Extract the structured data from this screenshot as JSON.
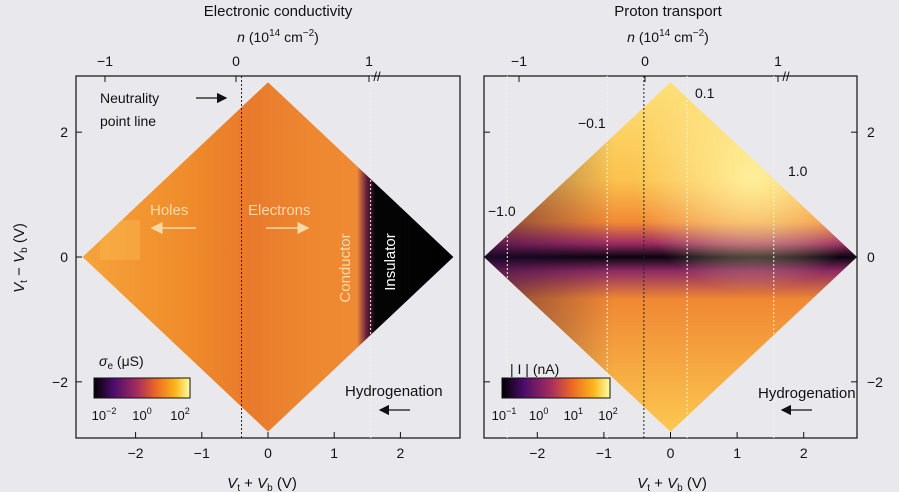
{
  "chart_data": [
    {
      "type": "heatmap",
      "title": "Electronic conductivity",
      "top_axis_label": "n (10^14 cm^-2)",
      "top_ticks": [
        "−1",
        "0",
        "1"
      ],
      "xlabel": "V_t + V_b (V)",
      "ylabel": "V_t − V_b (V)",
      "x_ticks": [
        -2,
        -1,
        0,
        1,
        2
      ],
      "y_ticks": [
        -2,
        0,
        2
      ],
      "xlim": [
        -2.9,
        2.9
      ],
      "ylim": [
        -2.9,
        2.9
      ],
      "diamond_half_extent": 2.8,
      "colorbar": {
        "label": "σe (μS)",
        "ticks": [
          "10−2",
          "100",
          "102"
        ],
        "scale": "log",
        "colors": [
          "#000000",
          "#4b0c6b",
          "#a52c60",
          "#ed6925",
          "#fbb61a",
          "#fcffa4"
        ]
      },
      "annotations": {
        "neutrality": "Neutrality point line",
        "holes": "Holes",
        "electrons": "Electrons",
        "conductor": "Conductor",
        "insulator": "Insulator",
        "hydrogenation": "Hydrogenation"
      },
      "vertical_lines_x": [
        -0.4,
        1.55
      ],
      "regions": [
        {
          "name": "Conductor",
          "x_range": [
            -2.8,
            1.55
          ],
          "sigma_uS_approx": 10
        },
        {
          "name": "Insulator",
          "x_range": [
            1.55,
            2.8
          ],
          "sigma_uS_approx": 0.01
        }
      ]
    },
    {
      "type": "heatmap",
      "title": "Proton transport",
      "top_axis_label": "n (10^14 cm^-2)",
      "top_ticks": [
        "−1",
        "0",
        "1"
      ],
      "xlabel": "V_t + V_b (V)",
      "ylabel": "",
      "x_ticks": [
        -2,
        -1,
        0,
        1,
        2
      ],
      "y_ticks": [
        -2,
        0,
        2
      ],
      "xlim": [
        -2.8,
        2.8
      ],
      "ylim": [
        -2.9,
        2.9
      ],
      "diamond_half_extent": 2.8,
      "colorbar": {
        "label": "| I | (nA)",
        "ticks": [
          "10−1",
          "100",
          "101",
          "102"
        ],
        "scale": "log",
        "colors": [
          "#000000",
          "#4b0c6b",
          "#a52c60",
          "#ed6925",
          "#fbb61a",
          "#fcffa4"
        ]
      },
      "contour_labels": [
        "−1.0",
        "−0.1",
        "0.1",
        "1.0"
      ],
      "annotations": {
        "hydrogenation": "Hydrogenation"
      },
      "vertical_lines_x": [
        -2.45,
        -0.95,
        -0.4,
        0.25,
        1.55
      ],
      "features": [
        {
          "name": "Dark band along V_t − V_b = 0",
          "current_nA_approx": 0.1
        },
        {
          "name": "Bright region upper right",
          "current_nA_approx": 100
        }
      ]
    }
  ]
}
